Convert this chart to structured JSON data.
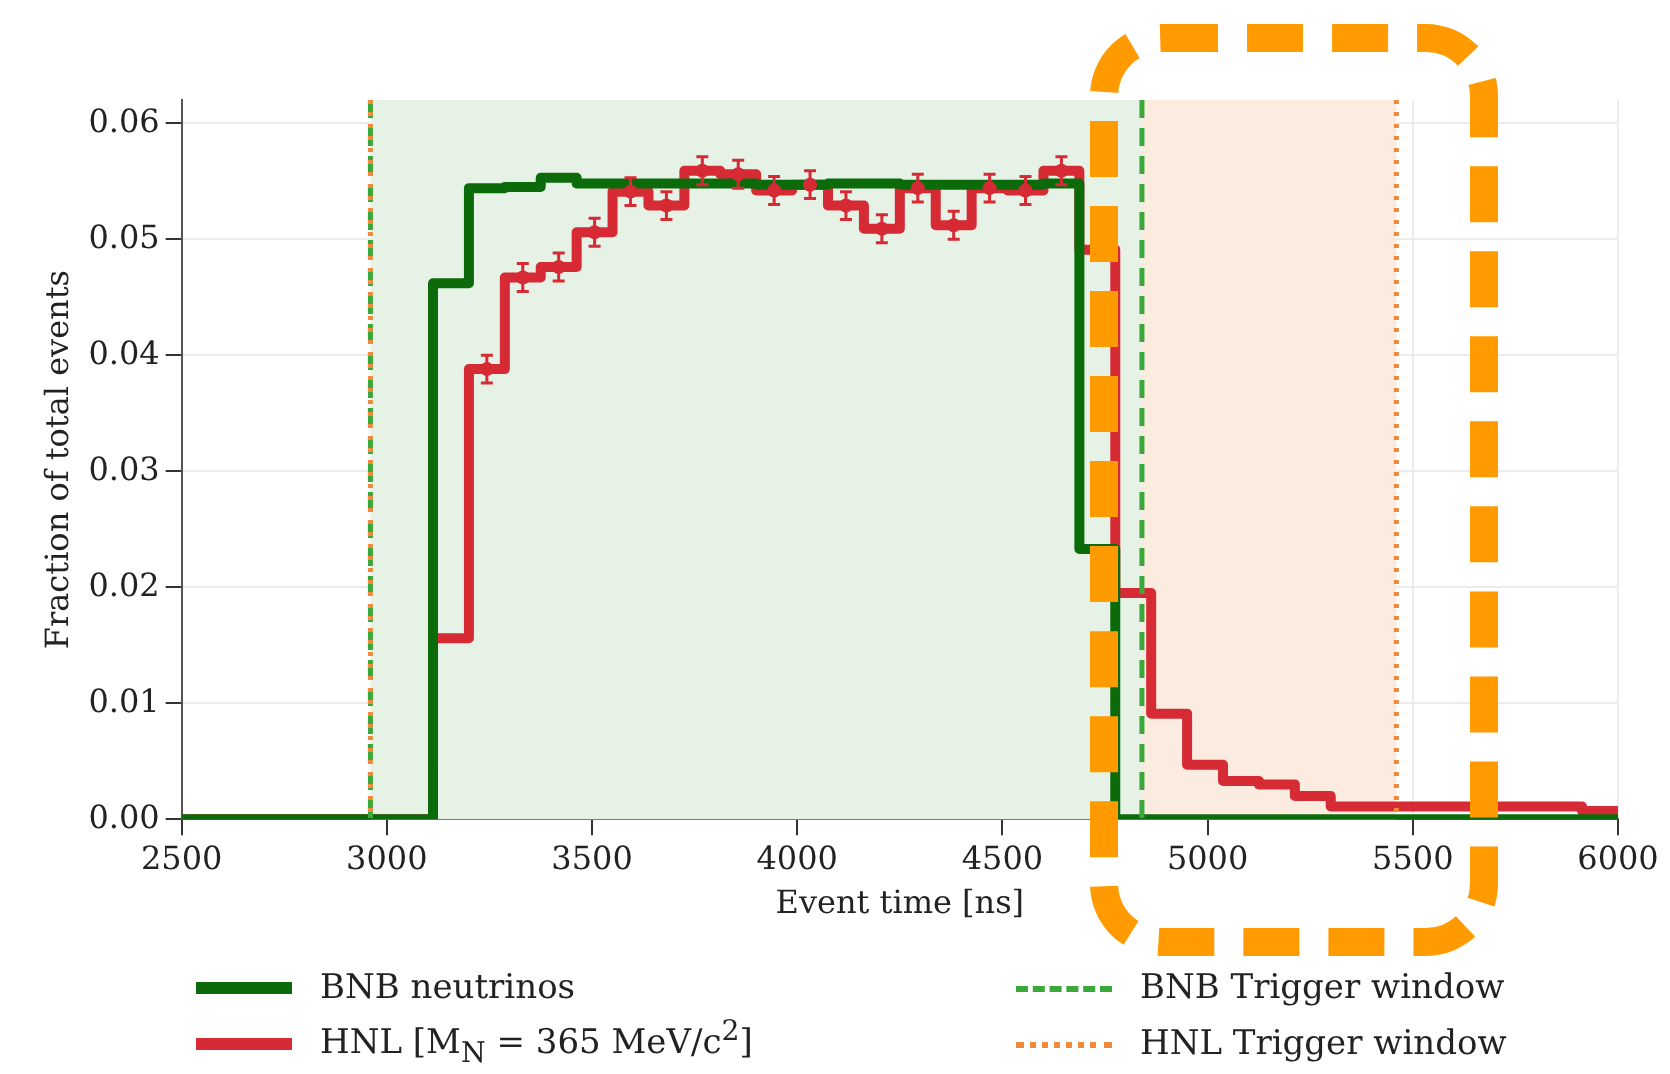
{
  "chart_data": {
    "type": "histogram",
    "xlabel": "Event time [ns]",
    "ylabel": "Fraction of total events",
    "bins": [
      2500,
      2587.5,
      2675,
      2762.5,
      2850,
      2937.5,
      3025,
      3112.5,
      3200,
      3287.5,
      3375,
      3462.5,
      3550,
      3637.5,
      3725,
      3812.5,
      3900,
      3987.5,
      4075,
      4162.5,
      4250,
      4337.5,
      4425,
      4512.5,
      4600,
      4687.5,
      4775,
      4862.5,
      4950,
      5037.5,
      5125,
      5212.5,
      5300,
      5387.5,
      5475,
      5562.5,
      5650,
      5737.5,
      5825,
      5912.5,
      6000
    ],
    "series": [
      {
        "name": "BNB neutrinos",
        "color": "#0b6b0b",
        "values": [
          0,
          0,
          0,
          0,
          0,
          0,
          0,
          0.0462,
          0.0544,
          0.0545,
          0.0553,
          0.0548,
          0.0548,
          0.0548,
          0.0548,
          0.0548,
          0.0547,
          0.0547,
          0.0548,
          0.0548,
          0.0547,
          0.0547,
          0.0547,
          0.0547,
          0.0548,
          0.0233,
          0,
          0,
          0,
          0,
          0,
          0,
          0,
          0,
          0,
          0,
          0,
          0,
          0,
          0
        ]
      },
      {
        "name": "HNL [M$_{N}$ = 365 MeV/c$^{2}$]",
        "color": "#d62a35",
        "values": [
          0,
          0,
          0,
          0,
          0,
          0,
          0,
          0.0156,
          0.0388,
          0.0467,
          0.0476,
          0.0506,
          0.0541,
          0.0529,
          0.0559,
          0.0556,
          0.0542,
          0.0547,
          0.0529,
          0.0509,
          0.0544,
          0.0512,
          0.0544,
          0.0542,
          0.0559,
          0.0491,
          0.0195,
          0.0091,
          0.0047,
          0.0033,
          0.003,
          0.002,
          0.0011,
          0.0011,
          0.0011,
          0.0011,
          0.0011,
          0.0011,
          0.0011,
          0.0007
        ]
      },
      {
        "type": "scatter",
        "marker": "circle",
        "color": "#d62a35",
        "x": [
          3243.75,
          3331.25,
          3418.75,
          3506.25,
          3593.75,
          3681.25,
          3768.75,
          3856.25,
          3943.75,
          4031.25,
          4118.75,
          4206.25,
          4293.75,
          4381.25,
          4468.75,
          4556.25,
          4643.75
        ],
        "values": [
          0.0388,
          0.0467,
          0.0476,
          0.0506,
          0.0541,
          0.0529,
          0.0559,
          0.0556,
          0.0542,
          0.0547,
          0.0529,
          0.0509,
          0.0544,
          0.0512,
          0.0544,
          0.0542,
          0.0559
        ],
        "errors": [
          0.0012,
          0.0012,
          0.0012,
          0.0012,
          0.0012,
          0.0012,
          0.0012,
          0.0012,
          0.0012,
          0.0012,
          0.0012,
          0.0012,
          0.0012,
          0.0012,
          0.0012,
          0.0012,
          0.0012
        ]
      }
    ],
    "bands": [
      {
        "axis": "x",
        "from": 2960,
        "to": 4840,
        "color": "#e6f2e6"
      },
      {
        "axis": "x",
        "from": 4840,
        "to": 5460,
        "color": "#fcece0"
      }
    ],
    "ref_lines": [
      {
        "axis": "x",
        "value": 2960,
        "color": "#3aa83a",
        "line_style": "dashed"
      },
      {
        "axis": "x",
        "value": 4840,
        "label": "BNB Trigger window",
        "color": "#3aa83a",
        "line_style": "dashed"
      },
      {
        "axis": "x",
        "value": 2960,
        "color": "#f08a3c",
        "line_style": "dotted"
      },
      {
        "axis": "x",
        "value": 5460,
        "label": "HNL Trigger window",
        "color": "#f08a3c",
        "line_style": "dotted"
      }
    ],
    "xlim": [
      2500,
      6000
    ],
    "xticks": [
      2500,
      3000,
      3500,
      4000,
      4500,
      5000,
      5500,
      6000
    ],
    "ylim": [
      0,
      0.062
    ],
    "yticks": [
      {
        "value": 0,
        "label": "0.00"
      },
      {
        "value": 0.01,
        "label": "0.01"
      },
      {
        "value": 0.02,
        "label": "0.02"
      },
      {
        "value": 0.03,
        "label": "0.03"
      },
      {
        "value": 0.04,
        "label": "0.04"
      },
      {
        "value": 0.05,
        "label": "0.05"
      },
      {
        "value": 0.06,
        "label": "0.06"
      }
    ],
    "grid": true,
    "legend": "bottom"
  }
}
